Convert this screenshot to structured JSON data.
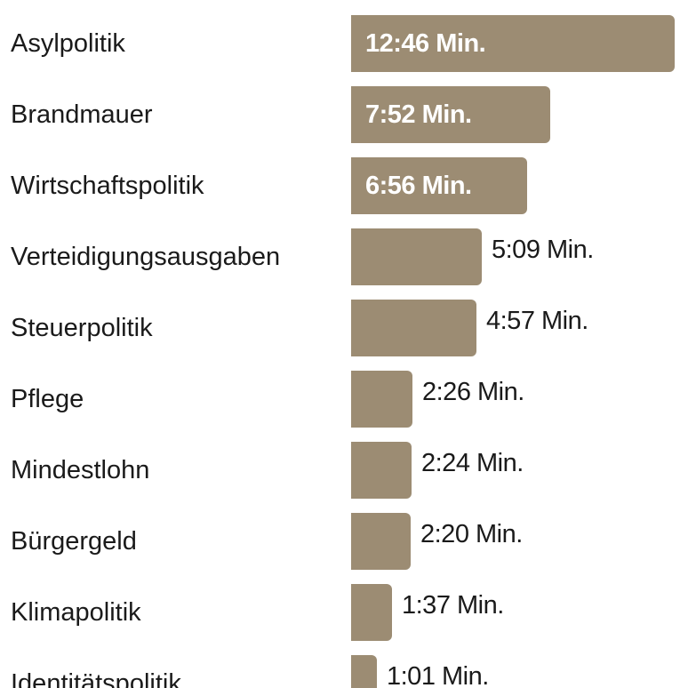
{
  "colors": {
    "bar": "#9c8c73",
    "text": "#1a1a1a",
    "inside_label": "#ffffff"
  },
  "chart_data": {
    "type": "bar",
    "orientation": "horizontal",
    "categories": [
      "Asylpolitik",
      "Brandmauer",
      "Wirtschaftspolitik",
      "Verteidigungsausgaben",
      "Steuerpolitik",
      "Pflege",
      "Mindestlohn",
      "Bürgergeld",
      "Klimapolitik",
      "Identitätspolitik"
    ],
    "values": [
      766,
      472,
      416,
      309,
      297,
      146,
      144,
      140,
      97,
      61
    ],
    "value_unit": "seconds",
    "data_labels": [
      "12:46 Min.",
      "7:52 Min.",
      "6:56 Min.",
      "5:09 Min.",
      "4:57 Min.",
      "2:26 Min.",
      "2:24 Min.",
      "2:20 Min.",
      "1:37 Min.",
      "1:01 Min."
    ],
    "title": "",
    "xlabel": "",
    "ylabel": "",
    "grid": false,
    "legend": "none"
  }
}
